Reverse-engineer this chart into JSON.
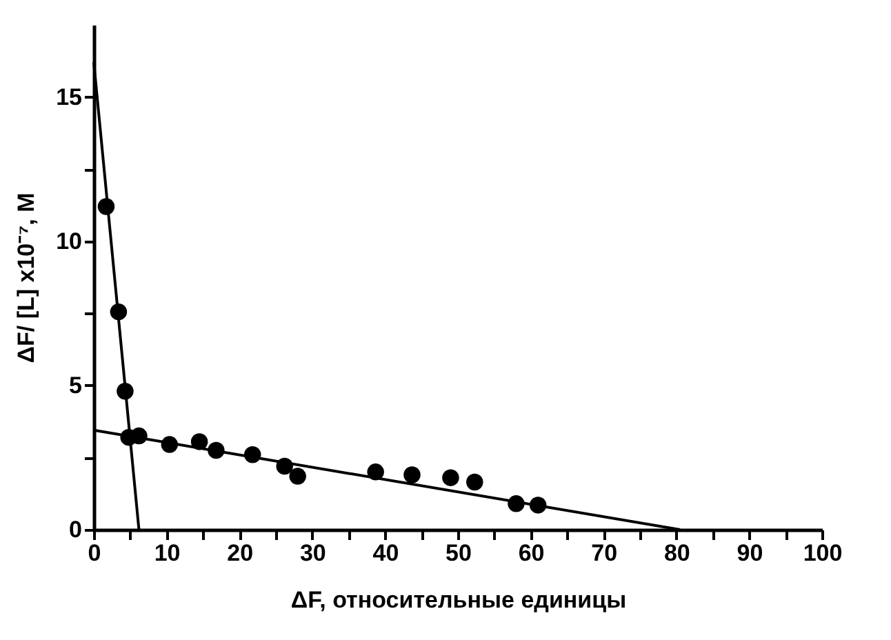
{
  "chart_data": {
    "type": "scatter",
    "xlabel": "ΔF, относительные единицы",
    "ylabel": "ΔF/ [L] x10⁻⁷, M",
    "xlim": [
      0,
      100
    ],
    "ylim": [
      0,
      17.5
    ],
    "xticks": [
      0,
      {
        "value": 5,
        "label": null
      },
      10,
      {
        "value": 15,
        "label": null
      },
      20,
      {
        "value": 25,
        "label": null
      },
      30,
      {
        "value": 35,
        "label": null
      },
      40,
      {
        "value": 45,
        "label": null
      },
      50,
      {
        "value": 55,
        "label": null
      },
      60,
      {
        "value": 65,
        "label": null
      },
      70,
      {
        "value": 75,
        "label": null
      },
      80,
      {
        "value": 85,
        "label": null
      },
      90,
      {
        "value": 95,
        "label": null
      },
      100
    ],
    "yticks": [
      0,
      {
        "value": 2.5,
        "label": null
      },
      5,
      {
        "value": 7.5,
        "label": null
      },
      10,
      {
        "value": 12.5,
        "label": null
      },
      15
    ],
    "grid": false,
    "series": [
      {
        "color": "#000000",
        "marker": "circle",
        "x": [
          1.7,
          3.4,
          4.3,
          4.8,
          6.2,
          10.4,
          14.5,
          16.8,
          21.8,
          26.2,
          28,
          38.7,
          43.7,
          49,
          52.3,
          58,
          61
        ],
        "values": [
          11.2,
          7.55,
          4.8,
          3.2,
          3.25,
          2.95,
          3.05,
          2.75,
          2.6,
          2.2,
          1.85,
          2.0,
          1.9,
          1.8,
          1.65,
          0.9,
          0.85
        ]
      },
      {
        "type": "line",
        "color": "#000000",
        "marker": "none",
        "line_style": "solid",
        "x": [
          0,
          6.2
        ],
        "values": [
          16.2,
          0
        ]
      },
      {
        "type": "line",
        "color": "#000000",
        "marker": "none",
        "line_style": "solid",
        "x": [
          0,
          80.5
        ],
        "values": [
          3.45,
          0
        ]
      }
    ]
  }
}
